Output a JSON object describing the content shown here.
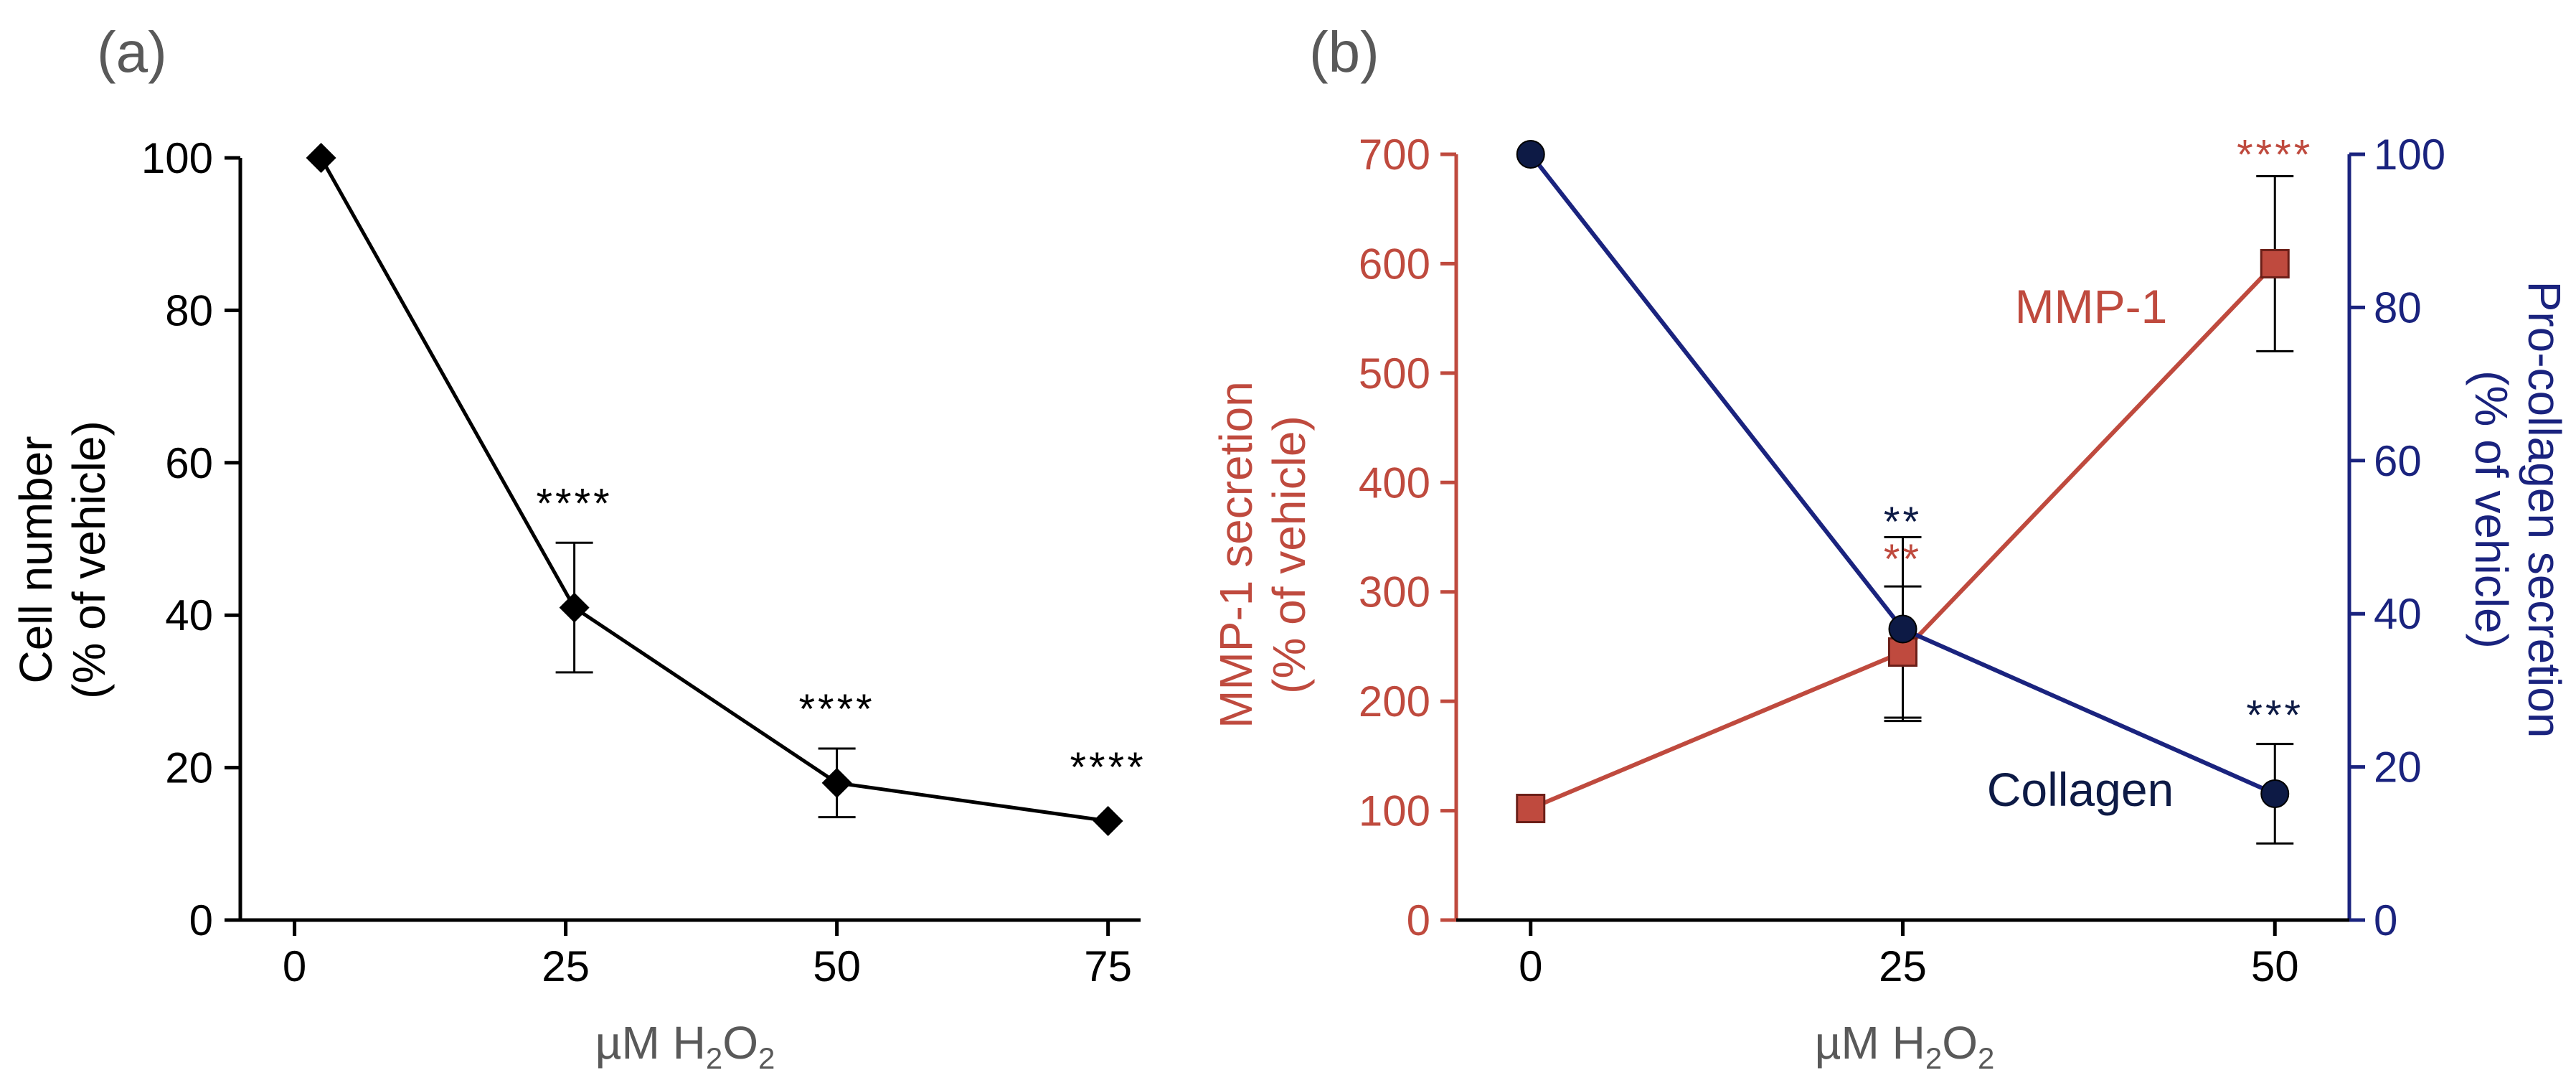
{
  "chart_data": [
    {
      "panel_label": "(a)",
      "type": "line",
      "x": [
        0,
        25,
        50,
        75
      ],
      "xticks": [
        "0",
        "25",
        "50",
        "75"
      ],
      "xlim": [
        -5,
        78
      ],
      "xlabel": {
        "prefix": "µM H",
        "sub1": "2",
        "mid": "O",
        "sub2": "2"
      },
      "ylabel_line1": "Cell number",
      "ylabel_line2": "(% of vehicle)",
      "ylim": [
        0,
        100
      ],
      "yticks": [
        "0",
        "20",
        "40",
        "60",
        "80",
        "100"
      ],
      "series": [
        {
          "name": "Cell number",
          "color": "#000000",
          "marker": "diamond",
          "values": [
            100,
            41,
            18,
            13
          ],
          "error": [
            0,
            8.5,
            4.5,
            0
          ],
          "significance": [
            "",
            "****",
            "****",
            "****"
          ]
        }
      ]
    },
    {
      "panel_label": "(b)",
      "type": "line",
      "x": [
        0,
        25,
        50
      ],
      "xticks": [
        "0",
        "25",
        "50"
      ],
      "xlim": [
        -5,
        55
      ],
      "xlabel": {
        "prefix": "µM H",
        "sub1": "2",
        "mid": "O",
        "sub2": "2"
      },
      "left_axis": {
        "ylabel_line1": "MMP-1 secretion",
        "ylabel_line2": "(% of vehicle)",
        "ylim": [
          0,
          700
        ],
        "yticks": [
          "0",
          "100",
          "200",
          "300",
          "400",
          "500",
          "600",
          "700"
        ],
        "color": "#bf4a3e"
      },
      "right_axis": {
        "ylabel_line1": "Pro-collagen secretion",
        "ylabel_line2": "(% of vehicle)",
        "ylim": [
          0,
          100
        ],
        "yticks": [
          "0",
          "20",
          "40",
          "60",
          "80",
          "100"
        ],
        "color": "#1a237e"
      },
      "series": [
        {
          "name": "MMP-1",
          "axis": "left",
          "color": "#bf4a3e",
          "marker": "square",
          "values": [
            102,
            245,
            600
          ],
          "error": [
            0,
            60,
            80
          ],
          "significance": [
            "",
            "**",
            "****"
          ]
        },
        {
          "name": "Collagen",
          "axis": "right",
          "color": "#1a237e",
          "marker_color": "#0d1a45",
          "marker": "circle",
          "values": [
            100,
            38,
            16.5
          ],
          "error": [
            0,
            12,
            6.5
          ],
          "significance": [
            "",
            "**",
            "***"
          ]
        }
      ]
    }
  ]
}
